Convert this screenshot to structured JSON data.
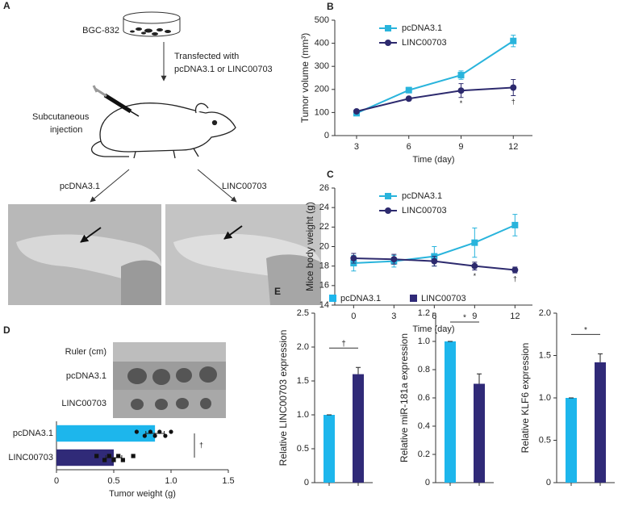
{
  "diagram": {
    "panel": "A",
    "cell_line": "BGC-832",
    "transfection": [
      "Transfected with",
      "pcDNA3.1 or LINC00703"
    ],
    "injection": [
      "Subcutaneous",
      "injection"
    ],
    "groups": [
      "pcDNA3.1",
      "LINC00703"
    ]
  },
  "chart_data": [
    {
      "type": "line",
      "panel": "B",
      "xlabel": "Time (day)",
      "ylabel": "Tumor volume (mm³)",
      "x": [
        3,
        6,
        9,
        12
      ],
      "xlim": [
        1.75,
        13.1
      ],
      "xticks": [
        3,
        6,
        9,
        12
      ],
      "ylim": [
        0,
        500
      ],
      "yticks": [
        0,
        100,
        200,
        300,
        400,
        500
      ],
      "legend": "upper left",
      "series": [
        {
          "name": "pcDNA3.1",
          "color": "#29b4dc",
          "marker": "square",
          "values": [
            97,
            197,
            262,
            410
          ],
          "errors": [
            4,
            12,
            18,
            25
          ]
        },
        {
          "name": "LINC00703",
          "color": "#2d2a6e",
          "marker": "circle",
          "values": [
            105,
            160,
            195,
            208
          ],
          "errors": [
            5,
            5,
            30,
            35
          ]
        }
      ],
      "annotations": [
        null,
        null,
        "*",
        "†"
      ]
    },
    {
      "type": "line",
      "panel": "C",
      "xlabel": "Time (day)",
      "ylabel": "Mice body weight (g)",
      "x": [
        0,
        3,
        6,
        9,
        12
      ],
      "xlim": [
        -1.4,
        13.3
      ],
      "xticks": [
        0,
        3,
        6,
        9,
        12
      ],
      "ylim": [
        14,
        26
      ],
      "yticks": [
        14,
        16,
        18,
        20,
        22,
        24,
        26
      ],
      "legend": "upper left",
      "series": [
        {
          "name": "pcDNA3.1",
          "color": "#29b4dc",
          "marker": "square",
          "values": [
            18.3,
            18.5,
            19.0,
            20.4,
            22.2
          ],
          "errors": [
            0.8,
            0.6,
            1.0,
            1.5,
            1.1
          ]
        },
        {
          "name": "LINC00703",
          "color": "#2d2a6e",
          "marker": "circle",
          "values": [
            18.8,
            18.7,
            18.5,
            18.0,
            17.6
          ],
          "errors": [
            0.5,
            0.5,
            0.5,
            0.4,
            0.3
          ]
        }
      ],
      "annotations": [
        null,
        null,
        null,
        "*",
        "†"
      ]
    },
    {
      "type": "hbar",
      "panel": "D",
      "xlabel": "Tumor weight (g)",
      "photo_labels": [
        "Ruler (cm)",
        "pcDNA3.1",
        "LINC00703"
      ],
      "categories": [
        "pcDNA3.1",
        "LINC00703"
      ],
      "values": [
        0.86,
        0.5
      ],
      "errors": [
        0.08,
        0.07
      ],
      "colors": [
        "#1db6ec",
        "#302a78"
      ],
      "point_markers": [
        "circle",
        "square"
      ],
      "points": [
        [
          0.7,
          0.77,
          0.82,
          0.86,
          0.9,
          0.95,
          1.0
        ],
        [
          0.35,
          0.42,
          0.46,
          0.5,
          0.54,
          0.58,
          0.67
        ]
      ],
      "xlim": [
        0,
        1.5
      ],
      "xticks": [
        0,
        0.5,
        {
          "value": 1,
          "label": "1.0"
        },
        1.5
      ],
      "annotation": "†"
    },
    {
      "type": "bar",
      "panel": "E",
      "ylabel": "Relative LINC00703 expression",
      "legend": [
        {
          "name": "pcDNA3.1",
          "color": "#1db6ec"
        },
        {
          "name": "LINC00703",
          "color": "#302a78"
        }
      ],
      "values": [
        1,
        1.6
      ],
      "errors": [
        0,
        0.1
      ],
      "colors": [
        "#1db6ec",
        "#302a78"
      ],
      "ylim": [
        0,
        2.5
      ],
      "yticks": [
        0,
        0.5,
        {
          "value": 1,
          "label": "1.0"
        },
        1.5,
        {
          "value": 2,
          "label": "2.0"
        },
        2.5
      ],
      "annotation": "†"
    },
    {
      "type": "bar",
      "ylabel": "Relative miR-181a expression",
      "values": [
        1,
        0.7
      ],
      "errors": [
        0,
        0.07
      ],
      "colors": [
        "#1db6ec",
        "#302a78"
      ],
      "ylim": [
        0,
        1.2
      ],
      "yticks": [
        0,
        0.2,
        0.4,
        0.6,
        0.8,
        {
          "value": 1,
          "label": "1.0"
        },
        1.2
      ],
      "annotation": "*"
    },
    {
      "type": "bar",
      "ylabel": "Relative KLF6 expression",
      "values": [
        1,
        1.42
      ],
      "errors": [
        0,
        0.1
      ],
      "colors": [
        "#1db6ec",
        "#302a78"
      ],
      "ylim": [
        0,
        2
      ],
      "yticks": [
        0,
        0.5,
        {
          "value": 1,
          "label": "1.0"
        },
        1.5,
        {
          "value": 2,
          "label": "2.0"
        }
      ],
      "annotation": "*"
    }
  ]
}
